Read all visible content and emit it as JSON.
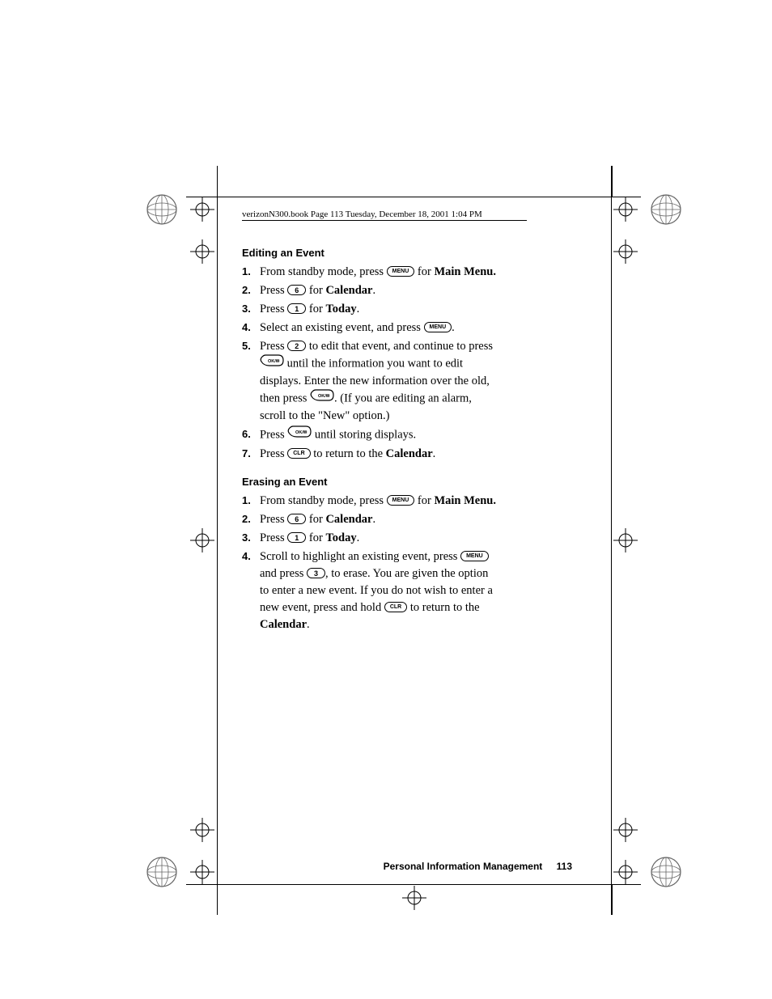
{
  "header": {
    "text": "verizonN300.book  Page 113  Tuesday, December 18, 2001  1:04 PM"
  },
  "sections": [
    {
      "title": "Editing an Event",
      "steps": [
        {
          "n": "1.",
          "parts": [
            {
              "t": "From standby mode, press "
            },
            {
              "key": "MENU"
            },
            {
              "t": " for "
            },
            {
              "b": "Main Menu."
            }
          ]
        },
        {
          "n": "2.",
          "parts": [
            {
              "t": "Press "
            },
            {
              "key": "6",
              "num": true
            },
            {
              "t": " for "
            },
            {
              "b": "Calendar"
            },
            {
              "t": "."
            }
          ]
        },
        {
          "n": "3.",
          "parts": [
            {
              "t": "Press "
            },
            {
              "key": "1",
              "num": true
            },
            {
              "t": " for "
            },
            {
              "b": "Today"
            },
            {
              "t": "."
            }
          ]
        },
        {
          "n": "4.",
          "parts": [
            {
              "t": "Select an existing event, and press "
            },
            {
              "key": "MENU"
            },
            {
              "t": "."
            }
          ]
        },
        {
          "n": "5.",
          "parts": [
            {
              "t": "Press "
            },
            {
              "key": "2",
              "num": true
            },
            {
              "t": " to edit that event, and continue to press "
            },
            {
              "okmsg": true
            },
            {
              "t": " until the information you want to edit displays. Enter the new information over the old, then press "
            },
            {
              "okmsg": true
            },
            {
              "t": ". (If you are editing an alarm, scroll to the \"New\" option.)"
            }
          ]
        },
        {
          "n": "6.",
          "parts": [
            {
              "t": "Press "
            },
            {
              "okmsg": true
            },
            {
              "t": " until storing displays."
            }
          ]
        },
        {
          "n": "7.",
          "parts": [
            {
              "t": "Press "
            },
            {
              "key": "CLR"
            },
            {
              "t": " to return to the "
            },
            {
              "b": "Calendar"
            },
            {
              "t": "."
            }
          ]
        }
      ]
    },
    {
      "title": "Erasing an Event",
      "steps": [
        {
          "n": "1.",
          "parts": [
            {
              "t": "From standby mode, press "
            },
            {
              "key": "MENU"
            },
            {
              "t": " for "
            },
            {
              "b": "Main Menu."
            }
          ]
        },
        {
          "n": "2.",
          "parts": [
            {
              "t": "Press "
            },
            {
              "key": "6",
              "num": true
            },
            {
              "t": " for "
            },
            {
              "b": "Calendar"
            },
            {
              "t": "."
            }
          ]
        },
        {
          "n": "3.",
          "parts": [
            {
              "t": "Press "
            },
            {
              "key": "1",
              "num": true
            },
            {
              "t": " for "
            },
            {
              "b": "Today"
            },
            {
              "t": "."
            }
          ]
        },
        {
          "n": "4.",
          "parts": [
            {
              "key": "MENU",
              "lead": "Scroll to highlight an existing event, press "
            },
            {
              "t": " and press "
            },
            {
              "key": "3",
              "num": true
            },
            {
              "t": ", to erase. You are given the option to enter a new event. If you do not wish to enter a new event, press and hold "
            },
            {
              "key": "CLR"
            },
            {
              "t": " to return to the "
            },
            {
              "b": "Calendar"
            },
            {
              "t": "."
            }
          ]
        }
      ]
    }
  ],
  "footer": {
    "section": "Personal Information Management",
    "page": "113"
  },
  "style": {
    "page_bg": "#ffffff",
    "text_color": "#000000",
    "body_font_size_pt": 14.5,
    "title_font_size_pt": 13,
    "footer_font_size_pt": 12
  },
  "keys": {
    "menu_label": "MENU",
    "clr_label": "CLR",
    "okmsg_label": "OK/✉"
  }
}
